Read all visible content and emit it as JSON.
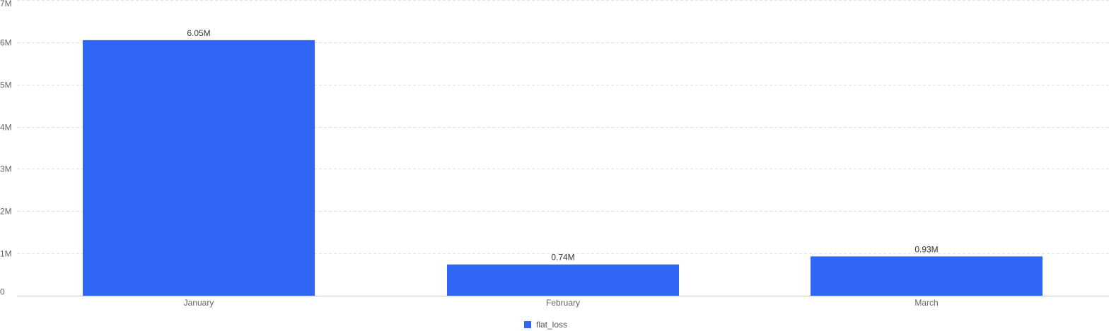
{
  "chart_data": {
    "type": "bar",
    "categories": [
      "January",
      "February",
      "March"
    ],
    "series": [
      {
        "name": "flat_loss",
        "values": [
          6050000,
          740000,
          930000
        ],
        "value_labels": [
          "6.05M",
          "0.74M",
          "0.93M"
        ],
        "color": "#2f66f3"
      }
    ],
    "y_ticks": [
      {
        "value": 0,
        "label": "0"
      },
      {
        "value": 1000000,
        "label": "1M"
      },
      {
        "value": 2000000,
        "label": "2M"
      },
      {
        "value": 3000000,
        "label": "3M"
      },
      {
        "value": 4000000,
        "label": "4M"
      },
      {
        "value": 5000000,
        "label": "5M"
      },
      {
        "value": 6000000,
        "label": "6M"
      },
      {
        "value": 7000000,
        "label": "7M"
      }
    ],
    "ylim": [
      0,
      7000000
    ],
    "grid": true,
    "legend_position": "bottom-center"
  }
}
